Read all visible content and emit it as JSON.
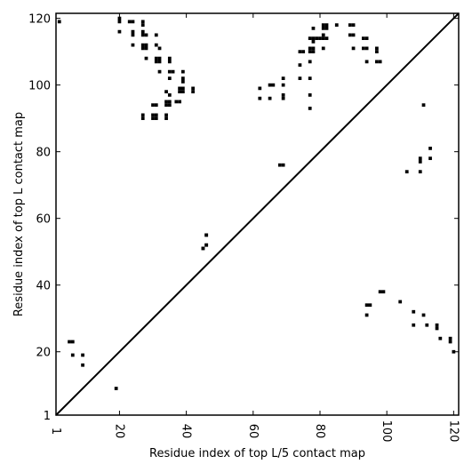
{
  "chart_data": {
    "type": "heatmap",
    "title": "",
    "xlabel": "Residue index of top L/5 contact map",
    "ylabel": "Residue index of top L contact map",
    "xlim": [
      1,
      121.5
    ],
    "ylim": [
      1,
      121.5
    ],
    "x_ticks": [
      1,
      20,
      40,
      60,
      80,
      100,
      120
    ],
    "y_ticks": [
      1,
      20,
      40,
      60,
      80,
      100,
      120
    ],
    "x_tick_labels": [
      "1",
      "20",
      "40",
      "60",
      "80",
      "100",
      "120"
    ],
    "y_tick_labels": [
      "1",
      "20",
      "40",
      "60",
      "80",
      "100",
      "120"
    ],
    "x_tick_rotation": -90,
    "grid": false,
    "diagonal": true,
    "cell_color": "#000000",
    "upper_triangle_contacts": [
      [
        2,
        119
      ],
      [
        20,
        120
      ],
      [
        20,
        119
      ],
      [
        20,
        116
      ],
      [
        23,
        119
      ],
      [
        24,
        119
      ],
      [
        24,
        116
      ],
      [
        24,
        115
      ],
      [
        24,
        112
      ],
      [
        27,
        119
      ],
      [
        27,
        118
      ],
      [
        27,
        116
      ],
      [
        27,
        115
      ],
      [
        28,
        115
      ],
      [
        27,
        112
      ],
      [
        28,
        112
      ],
      [
        27,
        111
      ],
      [
        28,
        111
      ],
      [
        28,
        108
      ],
      [
        31,
        115
      ],
      [
        31,
        112
      ],
      [
        32,
        111
      ],
      [
        31,
        108
      ],
      [
        32,
        108
      ],
      [
        31,
        107
      ],
      [
        32,
        107
      ],
      [
        35,
        108
      ],
      [
        35,
        107
      ],
      [
        32,
        104
      ],
      [
        35,
        104
      ],
      [
        36,
        104
      ],
      [
        35,
        102
      ],
      [
        39,
        104
      ],
      [
        39,
        102
      ],
      [
        39,
        101
      ],
      [
        38,
        99
      ],
      [
        39,
        99
      ],
      [
        38,
        98
      ],
      [
        39,
        98
      ],
      [
        42,
        99
      ],
      [
        42,
        98
      ],
      [
        34,
        98
      ],
      [
        35,
        97
      ],
      [
        34,
        95
      ],
      [
        35,
        95
      ],
      [
        34,
        94
      ],
      [
        35,
        94
      ],
      [
        37,
        95
      ],
      [
        38,
        95
      ],
      [
        30,
        94
      ],
      [
        31,
        94
      ],
      [
        27,
        91
      ],
      [
        27,
        90
      ],
      [
        30,
        91
      ],
      [
        31,
        91
      ],
      [
        30,
        90
      ],
      [
        31,
        90
      ],
      [
        34,
        91
      ],
      [
        34,
        90
      ],
      [
        62,
        99
      ],
      [
        62,
        96
      ],
      [
        65,
        100
      ],
      [
        66,
        100
      ],
      [
        65,
        96
      ],
      [
        69,
        102
      ],
      [
        69,
        100
      ],
      [
        69,
        97
      ],
      [
        69,
        96
      ],
      [
        74,
        110
      ],
      [
        75,
        110
      ],
      [
        74,
        106
      ],
      [
        74,
        102
      ],
      [
        77,
        102
      ],
      [
        77,
        97
      ],
      [
        77,
        93
      ],
      [
        77,
        107
      ],
      [
        78,
        117
      ],
      [
        77,
        114
      ],
      [
        78,
        114
      ],
      [
        79,
        114
      ],
      [
        80,
        114
      ],
      [
        81,
        114
      ],
      [
        82,
        114
      ],
      [
        78,
        113
      ],
      [
        77,
        111
      ],
      [
        78,
        111
      ],
      [
        77,
        110
      ],
      [
        78,
        110
      ],
      [
        81,
        118
      ],
      [
        82,
        118
      ],
      [
        81,
        117
      ],
      [
        82,
        117
      ],
      [
        81,
        115
      ],
      [
        81,
        111
      ],
      [
        85,
        118
      ],
      [
        89,
        118
      ],
      [
        90,
        118
      ],
      [
        89,
        115
      ],
      [
        90,
        115
      ],
      [
        93,
        114
      ],
      [
        94,
        114
      ],
      [
        90,
        111
      ],
      [
        93,
        111
      ],
      [
        94,
        111
      ],
      [
        97,
        111
      ],
      [
        97,
        110
      ],
      [
        94,
        107
      ],
      [
        97,
        107
      ],
      [
        98,
        107
      ],
      [
        68,
        76
      ],
      [
        69,
        76
      ],
      [
        46,
        55
      ],
      [
        46,
        52
      ],
      [
        45,
        51
      ],
      [
        111,
        94
      ],
      [
        113,
        81
      ],
      [
        110,
        78
      ],
      [
        113,
        78
      ],
      [
        110,
        77
      ],
      [
        106,
        74
      ],
      [
        110,
        74
      ]
    ],
    "lower_triangle_contacts": [
      [
        5,
        23
      ],
      [
        6,
        23
      ],
      [
        6,
        19
      ],
      [
        9,
        19
      ],
      [
        9,
        16
      ],
      [
        19,
        9
      ],
      [
        46,
        55
      ],
      [
        46,
        52
      ],
      [
        45,
        51
      ],
      [
        98,
        38
      ],
      [
        99,
        38
      ],
      [
        104,
        35
      ],
      [
        94,
        34
      ],
      [
        95,
        34
      ],
      [
        94,
        31
      ],
      [
        108,
        32
      ],
      [
        111,
        31
      ],
      [
        108,
        28
      ],
      [
        112,
        28
      ],
      [
        115,
        28
      ],
      [
        115,
        27
      ],
      [
        116,
        24
      ],
      [
        119,
        24
      ],
      [
        119,
        23
      ],
      [
        120,
        20
      ]
    ]
  }
}
